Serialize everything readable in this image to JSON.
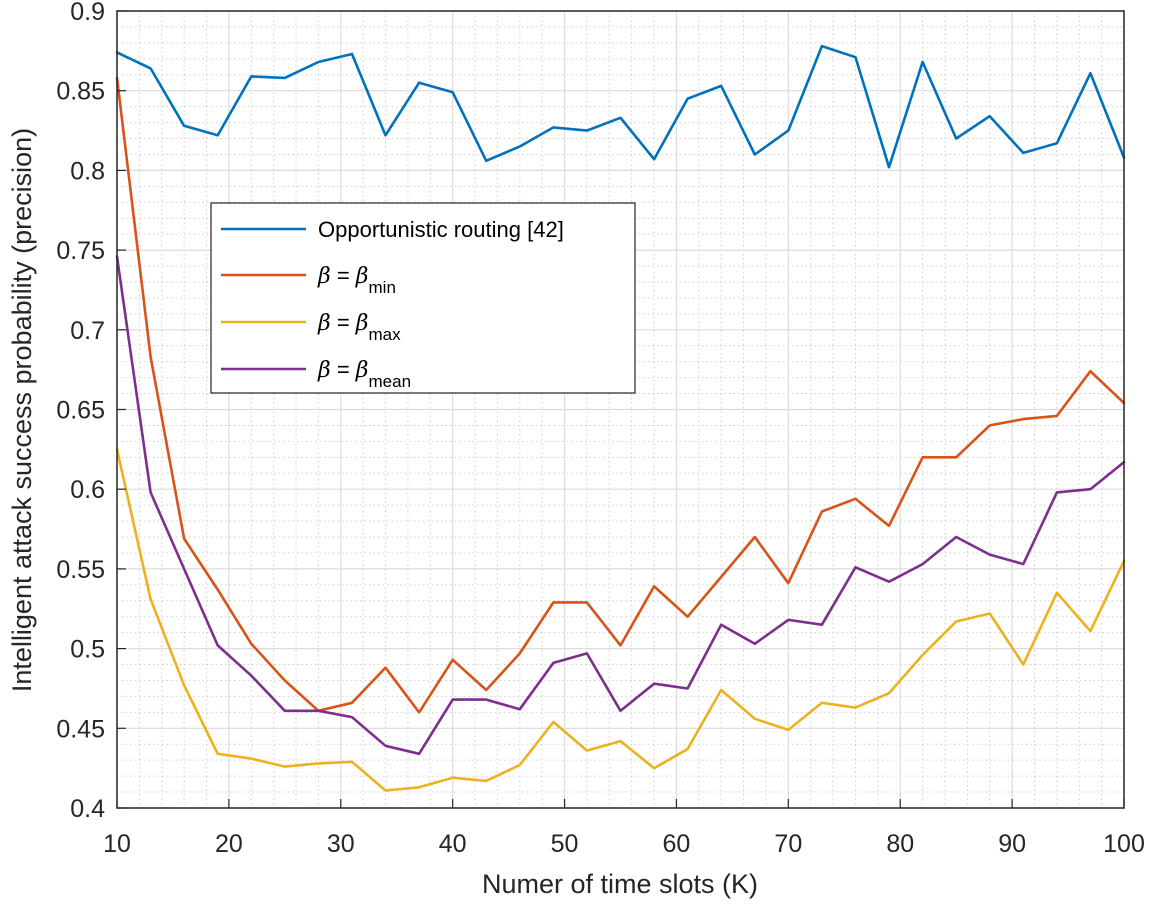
{
  "chart_data": {
    "type": "line",
    "title": "",
    "xlabel": "Numer of time slots (K)",
    "ylabel": "Intelligent attack success probability (precision)",
    "xlim": [
      10,
      100
    ],
    "ylim": [
      0.4,
      0.9
    ],
    "grid": true,
    "minor_grid": true,
    "legend_position": "upper-left-center",
    "x_ticks": [
      "10",
      "20",
      "30",
      "40",
      "50",
      "60",
      "70",
      "80",
      "90",
      "100"
    ],
    "y_ticks": [
      "0.4",
      "0.45",
      "0.5",
      "0.55",
      "0.6",
      "0.65",
      "0.7",
      "0.75",
      "0.8",
      "0.85",
      "0.9"
    ],
    "x": [
      10,
      13,
      16,
      19,
      22,
      25,
      28,
      31,
      34,
      37,
      40,
      43,
      46,
      49,
      52,
      55,
      58,
      61,
      64,
      67,
      70,
      73,
      76,
      79,
      82,
      85,
      88,
      91,
      94,
      97,
      100
    ],
    "series": [
      {
        "name": "Opportunistic routing [42]",
        "color": "#0072BD",
        "values": [
          0.874,
          0.864,
          0.828,
          0.822,
          0.859,
          0.858,
          0.868,
          0.873,
          0.822,
          0.855,
          0.849,
          0.806,
          0.815,
          0.827,
          0.825,
          0.833,
          0.807,
          0.845,
          0.853,
          0.81,
          0.825,
          0.878,
          0.871,
          0.802,
          0.868,
          0.82,
          0.834,
          0.811,
          0.817,
          0.861,
          0.808
        ]
      },
      {
        "name": "β = β_min",
        "legend_symbol": "β",
        "legend_sub": "min",
        "color": "#D95319",
        "values": [
          0.858,
          0.683,
          0.569,
          0.537,
          0.503,
          0.48,
          0.461,
          0.466,
          0.488,
          0.46,
          0.493,
          0.474,
          0.497,
          0.529,
          0.529,
          0.502,
          0.539,
          0.52,
          0.545,
          0.57,
          0.541,
          0.586,
          0.594,
          0.577,
          0.62,
          0.62,
          0.64,
          0.644,
          0.646,
          0.674,
          0.654
        ]
      },
      {
        "name": "β = β_max",
        "legend_symbol": "β",
        "legend_sub": "max",
        "color": "#EDB120",
        "values": [
          0.625,
          0.531,
          0.477,
          0.434,
          0.431,
          0.426,
          0.428,
          0.429,
          0.411,
          0.413,
          0.419,
          0.417,
          0.427,
          0.454,
          0.436,
          0.442,
          0.425,
          0.437,
          0.474,
          0.456,
          0.449,
          0.466,
          0.463,
          0.472,
          0.496,
          0.517,
          0.522,
          0.49,
          0.535,
          0.511,
          0.555
        ]
      },
      {
        "name": "β = β_mean",
        "legend_symbol": "β",
        "legend_sub": "mean",
        "color": "#7E2F8E",
        "values": [
          0.746,
          0.598,
          0.55,
          0.502,
          0.483,
          0.461,
          0.461,
          0.457,
          0.439,
          0.434,
          0.468,
          0.468,
          0.462,
          0.491,
          0.497,
          0.461,
          0.478,
          0.475,
          0.515,
          0.503,
          0.518,
          0.515,
          0.551,
          0.542,
          0.553,
          0.57,
          0.559,
          0.553,
          0.598,
          0.6,
          0.617
        ]
      }
    ]
  }
}
